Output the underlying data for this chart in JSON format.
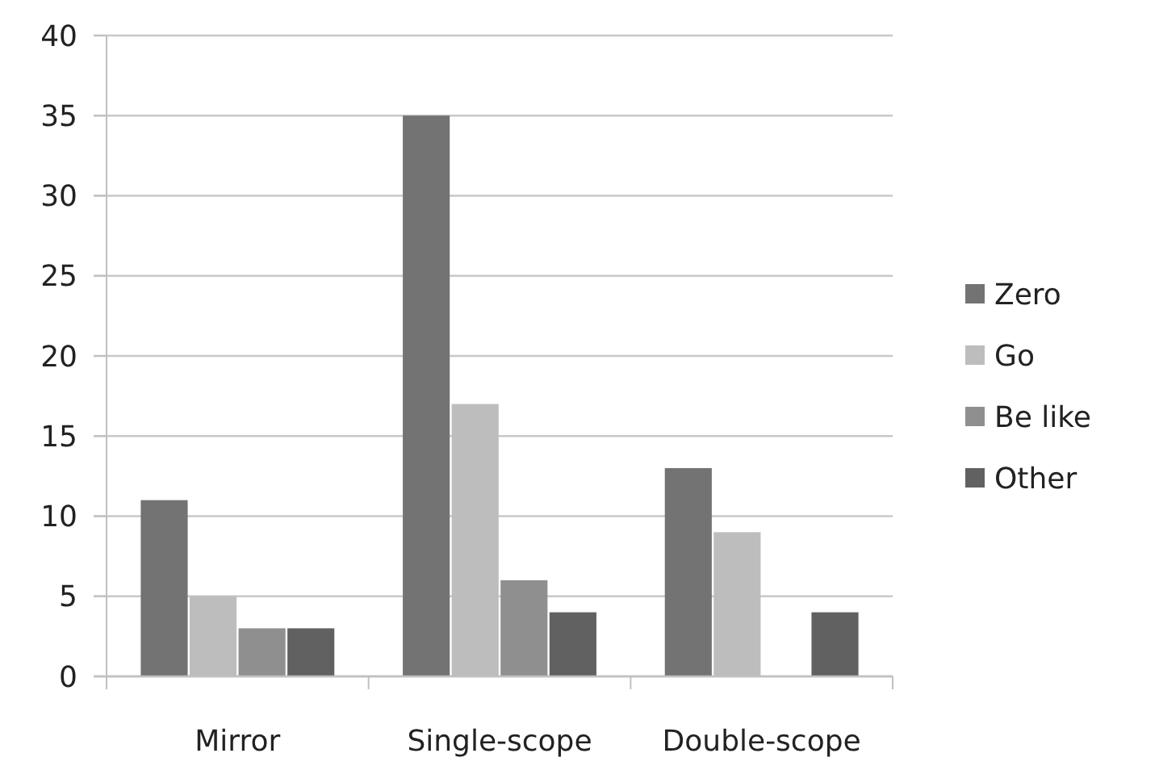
{
  "chart_data": {
    "type": "bar",
    "categories": [
      "Mirror",
      "Single-scope",
      "Double-scope"
    ],
    "series": [
      {
        "name": "Zero",
        "color": "#737373",
        "values": [
          11,
          35,
          13
        ]
      },
      {
        "name": "Go",
        "color": "#bdbdbd",
        "values": [
          5,
          17,
          9
        ]
      },
      {
        "name": "Be like",
        "color": "#8f8f8f",
        "values": [
          3,
          6,
          null
        ]
      },
      {
        "name": "Other",
        "color": "#616161",
        "values": [
          3,
          4,
          4
        ]
      }
    ],
    "ylim": [
      0,
      40
    ],
    "yticks": [
      0,
      5,
      10,
      15,
      20,
      25,
      30,
      35,
      40
    ],
    "grid": "y",
    "legend": "right"
  }
}
